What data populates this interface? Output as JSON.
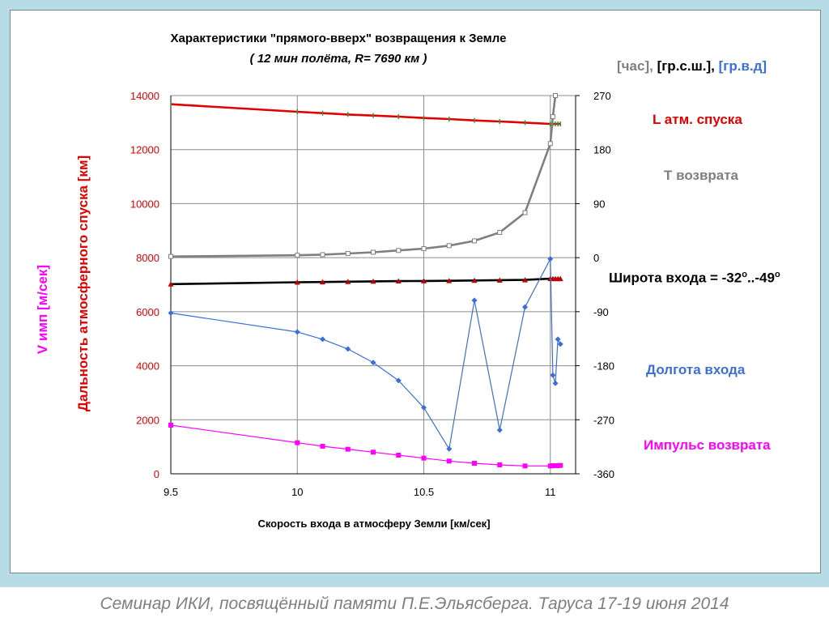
{
  "colors": {
    "range": "#e00000",
    "time": "#7f7f7f",
    "lat": "#000000",
    "lon": "#3a6fd8",
    "impulse": "#ff00ff",
    "lat_marker": "#c00000",
    "range_marker": "#2a9d2a"
  },
  "labels": {
    "units_hour": "[час],",
    "units_lat": "[гр.с.ш.],",
    "units_lon": "[гр.в.д]",
    "range": "L атм. спуска",
    "time": "T возврата",
    "lat_main": "Широта  входа = -32",
    "lat_dots": "..-49",
    "deg": "o",
    "lon": "Долгота  входа",
    "impulse": "Импульс возврата"
  },
  "footer": "Семинар ИКИ, посвящённый памяти П.Е.Эльясберга.   Таруса 17-19 июня 2014",
  "chart_data": {
    "type": "line",
    "title": "Характеристики \"прямого-вверх\" возвращения к Земле",
    "subtitle": "( 12 мин полёта, R= 7690 км )",
    "xlabel": "Скорость входа в атмосферу Земли [км/сек]",
    "ylabel_left_1": "V имп [м/сек]",
    "ylabel_left_2": "Дальность атмосферного спуска  [км]",
    "xlim": [
      9.5,
      11.1
    ],
    "ylim_left": [
      0,
      14000
    ],
    "ylim_right": [
      -360,
      270
    ],
    "x_ticks": [
      "9.5",
      "10",
      "10.5",
      "11"
    ],
    "y_left_ticks": [
      "0",
      "2000",
      "4000",
      "6000",
      "8000",
      "10000",
      "12000",
      "14000"
    ],
    "y_right_ticks": [
      "-360",
      "-270",
      "-180",
      "-90",
      "0",
      "90",
      "180",
      "270"
    ],
    "grid": true,
    "series": [
      {
        "axis": "left",
        "key": "range",
        "x": [
          9.5,
          10.0,
          10.1,
          10.2,
          10.3,
          10.4,
          10.5,
          10.6,
          10.7,
          10.8,
          10.9,
          11.0,
          11.01,
          11.02,
          11.03,
          11.04
        ],
        "values": [
          13680,
          13400,
          13350,
          13300,
          13260,
          13220,
          13170,
          13130,
          13080,
          13040,
          13000,
          12950,
          12950,
          12950,
          12950,
          12950
        ]
      },
      {
        "axis": "right",
        "key": "time",
        "x": [
          9.5,
          10.0,
          10.1,
          10.2,
          10.3,
          10.4,
          10.5,
          10.6,
          10.7,
          10.8,
          10.9,
          11.0,
          11.01,
          11.02
        ],
        "values": [
          2,
          4,
          5,
          7,
          9,
          12,
          15,
          20,
          28,
          42,
          75,
          190,
          235,
          270
        ]
      },
      {
        "axis": "right",
        "key": "lat",
        "x": [
          9.5,
          10.0,
          10.1,
          10.2,
          10.3,
          10.4,
          10.5,
          10.6,
          10.7,
          10.8,
          10.9,
          11.0,
          11.01,
          11.02,
          11.03,
          11.04
        ],
        "values": [
          -44,
          -41,
          -40.5,
          -40,
          -39.5,
          -39,
          -38.8,
          -38.5,
          -38,
          -37.5,
          -37,
          -35,
          -35,
          -35,
          -35,
          -35
        ]
      },
      {
        "axis": "left",
        "key": "lon",
        "x": [
          9.5,
          10.0,
          10.1,
          10.2,
          10.3,
          10.4,
          10.5,
          10.6,
          10.7,
          10.8,
          10.9,
          11.0,
          11.01,
          11.02,
          11.03,
          11.04
        ],
        "values": [
          5950,
          5250,
          4980,
          4620,
          4120,
          3450,
          2450,
          920,
          6420,
          1620,
          6170,
          7950,
          3650,
          3350,
          4980,
          4800
        ]
      },
      {
        "axis": "left",
        "key": "impulse",
        "x": [
          9.5,
          10.0,
          10.1,
          10.2,
          10.3,
          10.4,
          10.5,
          10.6,
          10.7,
          10.8,
          10.9,
          11.0,
          11.01,
          11.02,
          11.03,
          11.04
        ],
        "values": [
          1800,
          1150,
          1020,
          910,
          800,
          690,
          580,
          470,
          390,
          330,
          290,
          290,
          300,
          300,
          300,
          310
        ]
      }
    ]
  }
}
